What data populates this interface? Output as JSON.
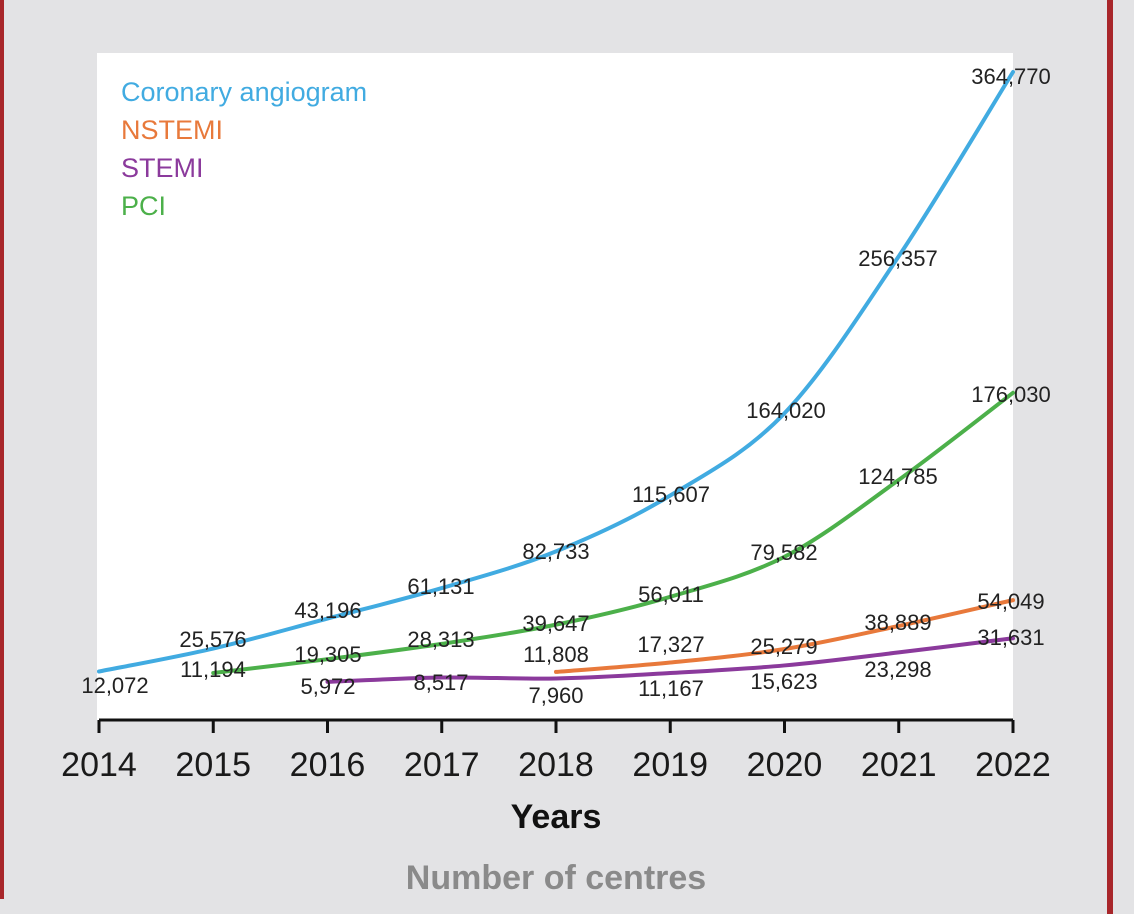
{
  "chart_data": {
    "type": "line",
    "x": [
      2014,
      2015,
      2016,
      2017,
      2018,
      2019,
      2020,
      2021,
      2022
    ],
    "categories": [
      "2014",
      "2015",
      "2016",
      "2017",
      "2018",
      "2019",
      "2020",
      "2021",
      "2022"
    ],
    "xlabel": "Years",
    "subtitle": "Number of centres",
    "ylim": [
      0,
      380000
    ],
    "grid": false,
    "legend_position": "top-left",
    "series": [
      {
        "name": "Coronary angiogram",
        "color": "#41abe1",
        "values": [
          12072,
          25576,
          43196,
          61131,
          82733,
          115607,
          164020,
          256357,
          364770
        ],
        "labels": [
          "12,072",
          "25,576",
          "43,196",
          "61,131",
          "82,733",
          "115,607",
          "164,020",
          "256,357",
          "364,770"
        ]
      },
      {
        "name": "NSTEMI",
        "color": "#e8793b",
        "values": [
          null,
          null,
          null,
          null,
          11808,
          17327,
          25279,
          38889,
          54049
        ],
        "labels": [
          "",
          "",
          "",
          "",
          "11,808",
          "17,327",
          "25,279",
          "38,889",
          "54,049"
        ]
      },
      {
        "name": "STEMI",
        "color": "#8b3a9c",
        "values": [
          null,
          null,
          5972,
          8517,
          7960,
          11167,
          15623,
          23298,
          31631
        ],
        "labels": [
          "",
          "",
          "5,972",
          "8,517",
          "7,960",
          "11,167",
          "15,623",
          "23,298",
          "31,631"
        ]
      },
      {
        "name": "PCI",
        "color": "#4cb04a",
        "values": [
          null,
          11194,
          19305,
          28313,
          39647,
          56011,
          79582,
          124785,
          176030
        ],
        "labels": [
          "",
          "11,194",
          "19,305",
          "28,313",
          "39,647",
          "56,011",
          "79,582",
          "124,785",
          "176,030"
        ]
      }
    ]
  }
}
